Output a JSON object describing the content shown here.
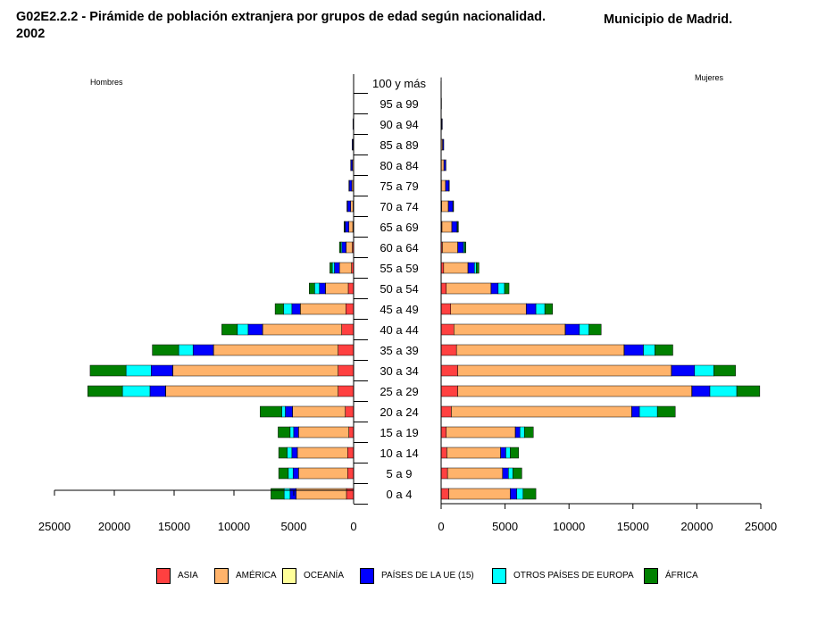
{
  "title_part1": "G02E2.2.2 -  Pirámide de población extranjera por grupos de edad según nacionalidad.",
  "title_part2": "Municipio de  Madrid.",
  "title_year": "2002",
  "chart_data": {
    "type": "bar",
    "orientation": "horizontal",
    "stacked": true,
    "panels": [
      "Hombres",
      "Mujeres"
    ],
    "categories": [
      "0 a 4",
      "5 a 9",
      "10 a 14",
      "15 a 19",
      "20 a 24",
      "25 a 29",
      "30 a 34",
      "35 a 39",
      "40 a 44",
      "45 a 49",
      "50 a 54",
      "55 a 59",
      "60 a 64",
      "65 a 69",
      "70 a 74",
      "75 a 79",
      "80 a 84",
      "85 a 89",
      "90 a 94",
      "95 a 99",
      "100 y más"
    ],
    "x_ticks": [
      "0",
      "5000",
      "10000",
      "15000",
      "20000",
      "25000"
    ],
    "xlim": [
      0,
      25000
    ],
    "legend_position": "bottom",
    "grid": false,
    "series": [
      {
        "name": "ASIA",
        "color": "#ff4040",
        "hombres": [
          600,
          500,
          500,
          400,
          700,
          1300,
          1300,
          1300,
          1000,
          650,
          450,
          180,
          110,
          70,
          45,
          30,
          20,
          10,
          5,
          2,
          1
        ],
        "mujeres": [
          600,
          500,
          450,
          400,
          800,
          1300,
          1300,
          1200,
          1000,
          750,
          400,
          200,
          100,
          70,
          45,
          30,
          20,
          10,
          5,
          2,
          1
        ]
      },
      {
        "name": "AMÉRICA",
        "color": "#ffb36b",
        "hombres": [
          4200,
          4100,
          4200,
          4200,
          4400,
          14400,
          13800,
          10400,
          6600,
          3800,
          1900,
          1000,
          520,
          330,
          200,
          120,
          80,
          40,
          15,
          5,
          2
        ],
        "mujeres": [
          4800,
          4300,
          4200,
          5400,
          14100,
          18300,
          16700,
          13100,
          8700,
          5900,
          3500,
          1900,
          1200,
          770,
          520,
          320,
          200,
          100,
          40,
          15,
          5
        ]
      },
      {
        "name": "OCEANÍA",
        "color": "#ffff99",
        "hombres": [
          10,
          10,
          10,
          10,
          10,
          20,
          20,
          20,
          15,
          10,
          10,
          5,
          5,
          3,
          2,
          1,
          1,
          0,
          0,
          0,
          0
        ],
        "mujeres": [
          10,
          10,
          10,
          10,
          10,
          20,
          20,
          20,
          15,
          10,
          10,
          5,
          5,
          3,
          2,
          1,
          1,
          0,
          0,
          0,
          0
        ]
      },
      {
        "name": "PAÍSES DE LA UE (15)",
        "color": "#0000ff",
        "hombres": [
          500,
          450,
          450,
          400,
          600,
          1300,
          1800,
          1700,
          1200,
          700,
          500,
          420,
          350,
          300,
          260,
          220,
          130,
          70,
          40,
          10,
          3
        ],
        "mujeres": [
          500,
          450,
          400,
          350,
          600,
          1400,
          1800,
          1500,
          1100,
          750,
          550,
          500,
          430,
          400,
          350,
          260,
          140,
          90,
          50,
          15,
          5
        ]
      },
      {
        "name": "OTROS PAÍSES DE EUROPA",
        "color": "#00ffff",
        "hombres": [
          500,
          400,
          400,
          300,
          300,
          2300,
          2100,
          1200,
          900,
          700,
          400,
          180,
          80,
          40,
          20,
          10,
          5,
          0,
          0,
          0,
          0
        ],
        "mujeres": [
          500,
          350,
          350,
          350,
          1400,
          2100,
          1500,
          900,
          750,
          700,
          500,
          150,
          80,
          40,
          20,
          10,
          5,
          0,
          0,
          0,
          0
        ]
      },
      {
        "name": "ÁFRICA",
        "color": "#008000",
        "hombres": [
          1100,
          800,
          700,
          1000,
          1800,
          2900,
          3000,
          2200,
          1300,
          700,
          450,
          200,
          120,
          60,
          30,
          15,
          10,
          5,
          0,
          0,
          0
        ],
        "mujeres": [
          1000,
          700,
          650,
          700,
          1400,
          1800,
          1700,
          1400,
          950,
          600,
          350,
          200,
          120,
          70,
          40,
          20,
          10,
          5,
          0,
          0,
          0
        ]
      }
    ]
  }
}
